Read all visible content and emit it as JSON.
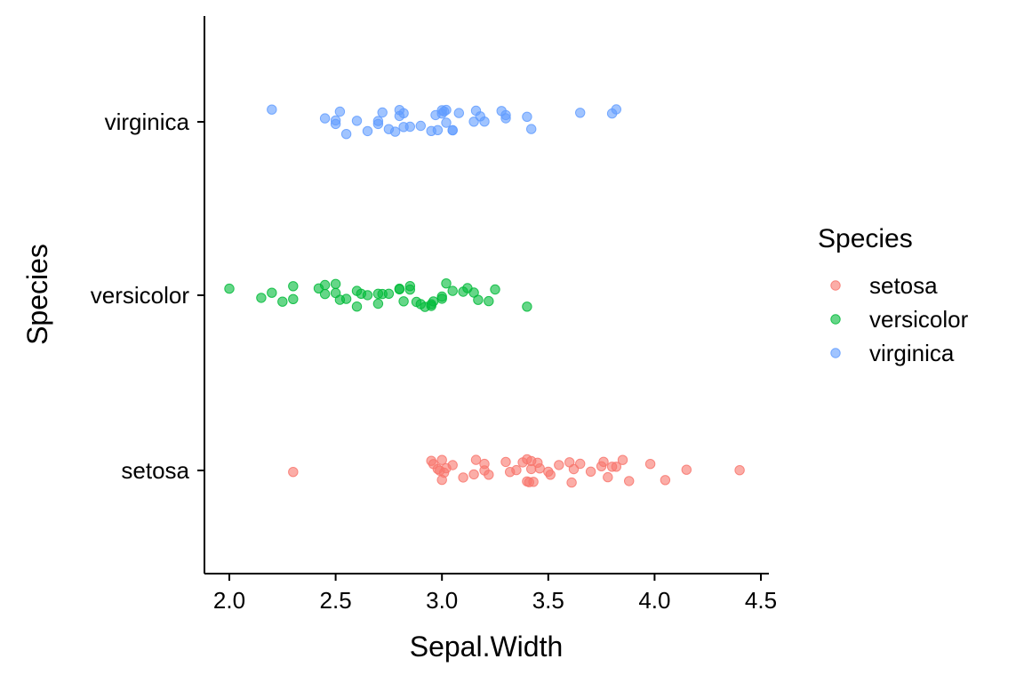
{
  "chart_data": {
    "type": "scatter",
    "title": "",
    "xlabel": "Sepal.Width",
    "ylabel": "Species",
    "xlim": [
      1.85,
      4.52
    ],
    "x_ticks": [
      "2.0",
      "2.5",
      "3.0",
      "3.5",
      "4.0",
      "4.5"
    ],
    "x_tick_values": [
      2.0,
      2.5,
      3.0,
      3.5,
      4.0,
      4.5
    ],
    "categories": [
      "setosa",
      "versicolor",
      "virginica"
    ],
    "grid": false,
    "legend": {
      "title": "Species",
      "position": "right"
    },
    "point_opacity": 0.6,
    "series": [
      {
        "name": "setosa",
        "color": "#F8766D",
        "x": [
          4.4,
          2.3,
          2.95,
          2.96,
          2.98,
          2.99,
          3.0,
          3.0,
          3.01,
          3.02,
          3.05,
          3.1,
          3.15,
          3.16,
          3.2,
          3.2,
          3.22,
          3.3,
          3.32,
          3.35,
          3.38,
          3.4,
          3.4,
          3.41,
          3.42,
          3.42,
          3.43,
          3.45,
          3.46,
          3.5,
          3.51,
          3.55,
          3.6,
          3.61,
          3.62,
          3.65,
          3.7,
          3.75,
          3.76,
          3.78,
          3.8,
          3.82,
          3.85,
          3.88,
          3.98,
          4.05,
          4.15
        ],
        "y": [
          "setosa",
          "setosa",
          "setosa",
          "setosa",
          "setosa",
          "setosa",
          "setosa",
          "setosa",
          "setosa",
          "setosa",
          "setosa",
          "setosa",
          "setosa",
          "setosa",
          "setosa",
          "setosa",
          "setosa",
          "setosa",
          "setosa",
          "setosa",
          "setosa",
          "setosa",
          "setosa",
          "setosa",
          "setosa",
          "setosa",
          "setosa",
          "setosa",
          "setosa",
          "setosa",
          "setosa",
          "setosa",
          "setosa",
          "setosa",
          "setosa",
          "setosa",
          "setosa",
          "setosa",
          "setosa",
          "setosa",
          "setosa",
          "setosa",
          "setosa",
          "setosa",
          "setosa",
          "setosa",
          "setosa"
        ]
      },
      {
        "name": "versicolor",
        "color": "#00BA38",
        "x": [
          2.0,
          2.15,
          2.2,
          2.25,
          2.3,
          2.3,
          2.42,
          2.45,
          2.45,
          2.5,
          2.5,
          2.52,
          2.55,
          2.6,
          2.6,
          2.62,
          2.65,
          2.7,
          2.7,
          2.72,
          2.75,
          2.8,
          2.8,
          2.82,
          2.85,
          2.85,
          2.88,
          2.9,
          2.92,
          2.95,
          2.95,
          2.96,
          3.0,
          3.0,
          3.02,
          3.05,
          3.1,
          3.12,
          3.15,
          3.17,
          3.22,
          3.25,
          3.4
        ],
        "y": [
          "versicolor",
          "versicolor",
          "versicolor",
          "versicolor",
          "versicolor",
          "versicolor",
          "versicolor",
          "versicolor",
          "versicolor",
          "versicolor",
          "versicolor",
          "versicolor",
          "versicolor",
          "versicolor",
          "versicolor",
          "versicolor",
          "versicolor",
          "versicolor",
          "versicolor",
          "versicolor",
          "versicolor",
          "versicolor",
          "versicolor",
          "versicolor",
          "versicolor",
          "versicolor",
          "versicolor",
          "versicolor",
          "versicolor",
          "versicolor",
          "versicolor",
          "versicolor",
          "versicolor",
          "versicolor",
          "versicolor",
          "versicolor",
          "versicolor",
          "versicolor",
          "versicolor",
          "versicolor",
          "versicolor",
          "versicolor",
          "versicolor"
        ]
      },
      {
        "name": "virginica",
        "color": "#619CFF",
        "x": [
          2.2,
          2.45,
          2.5,
          2.5,
          2.52,
          2.55,
          2.6,
          2.65,
          2.7,
          2.7,
          2.72,
          2.75,
          2.78,
          2.8,
          2.8,
          2.82,
          2.82,
          2.85,
          2.9,
          2.95,
          2.97,
          2.98,
          3.0,
          3.0,
          3.01,
          3.02,
          3.02,
          3.05,
          3.05,
          3.08,
          3.15,
          3.16,
          3.18,
          3.2,
          3.28,
          3.3,
          3.3,
          3.4,
          3.42,
          3.65,
          3.8,
          3.82
        ],
        "y": [
          "virginica",
          "virginica",
          "virginica",
          "virginica",
          "virginica",
          "virginica",
          "virginica",
          "virginica",
          "virginica",
          "virginica",
          "virginica",
          "virginica",
          "virginica",
          "virginica",
          "virginica",
          "virginica",
          "virginica",
          "virginica",
          "virginica",
          "virginica",
          "virginica",
          "virginica",
          "virginica",
          "virginica",
          "virginica",
          "virginica",
          "virginica",
          "virginica",
          "virginica",
          "virginica",
          "virginica",
          "virginica",
          "virginica",
          "virginica",
          "virginica",
          "virginica",
          "virginica",
          "virginica",
          "virginica",
          "virginica",
          "virginica",
          "virginica"
        ]
      }
    ]
  }
}
